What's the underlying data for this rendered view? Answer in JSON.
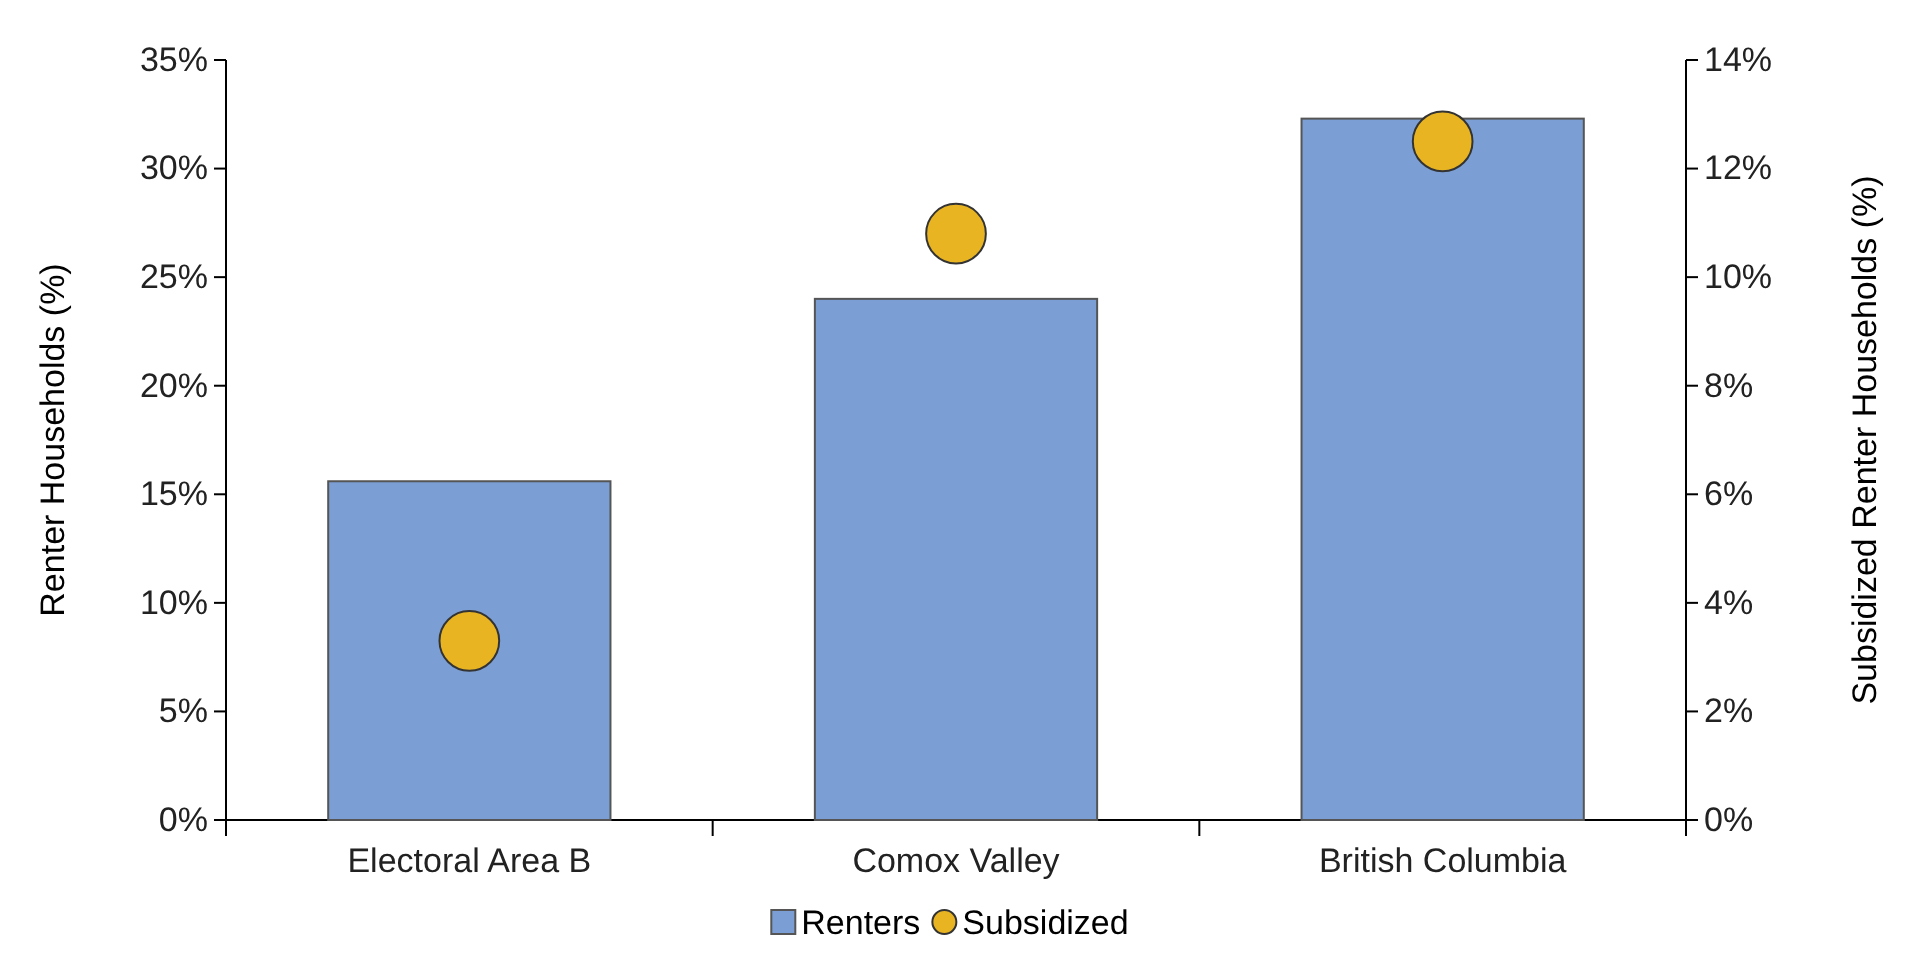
{
  "chart_data": {
    "type": "bar",
    "categories": [
      "Electoral Area B",
      "Comox Valley",
      "British Columbia"
    ],
    "series": [
      {
        "name": "Renters",
        "color": "#7b9fd4",
        "values": [
          15.6,
          24.0,
          32.3
        ]
      },
      {
        "name": "Subsidized",
        "type": "scatter",
        "axis": "y2",
        "color": "#e8b422",
        "marker": "circle",
        "values": [
          3.3,
          10.8,
          12.5
        ]
      }
    ],
    "ylabel": "Renter Households (%)",
    "y2label": "Subsidized Renter Households (%)",
    "ylim": [
      0,
      35
    ],
    "yticks": [
      {
        "value": 0,
        "label": "0%"
      },
      {
        "value": 5,
        "label": "5%"
      },
      {
        "value": 10,
        "label": "10%"
      },
      {
        "value": 15,
        "label": "15%"
      },
      {
        "value": 20,
        "label": "20%"
      },
      {
        "value": 25,
        "label": "25%"
      },
      {
        "value": 30,
        "label": "30%"
      },
      {
        "value": 35,
        "label": "35%"
      }
    ],
    "y2lim": [
      0,
      14
    ],
    "y2ticks": [
      {
        "value": 0,
        "label": "0%"
      },
      {
        "value": 2,
        "label": "2%"
      },
      {
        "value": 4,
        "label": "4%"
      },
      {
        "value": 6,
        "label": "6%"
      },
      {
        "value": 8,
        "label": "8%"
      },
      {
        "value": 10,
        "label": "10%"
      },
      {
        "value": 12,
        "label": "12%"
      },
      {
        "value": 14,
        "label": "14%"
      }
    ],
    "grid": false,
    "legend": "bottom"
  }
}
